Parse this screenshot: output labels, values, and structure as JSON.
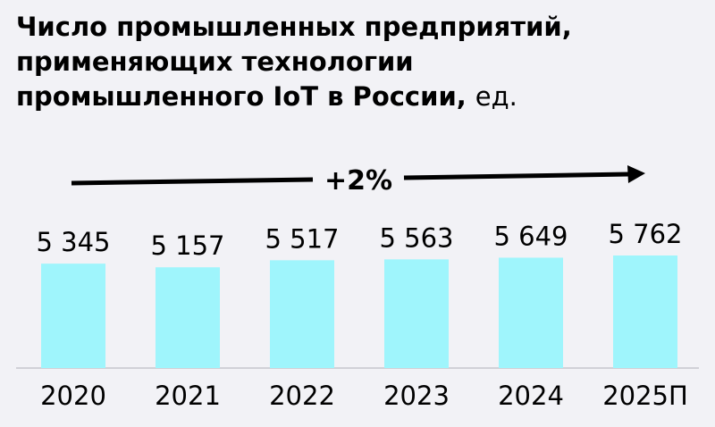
{
  "chart_data": {
    "type": "bar",
    "title": [
      "Число промышленных предприятий,",
      "применяющих технологии",
      "промышленного IoT в России,"
    ],
    "unit": "ед.",
    "annotation": "+2%",
    "categories": [
      "2020",
      "2021",
      "2022",
      "2023",
      "2024",
      "2025П"
    ],
    "values": [
      5345,
      5157,
      5517,
      5563,
      5649,
      5762
    ],
    "value_labels": [
      "5 345",
      "5 157",
      "5 517",
      "5 563",
      "5 649",
      "5 762"
    ],
    "color": "#9ff5fc"
  }
}
